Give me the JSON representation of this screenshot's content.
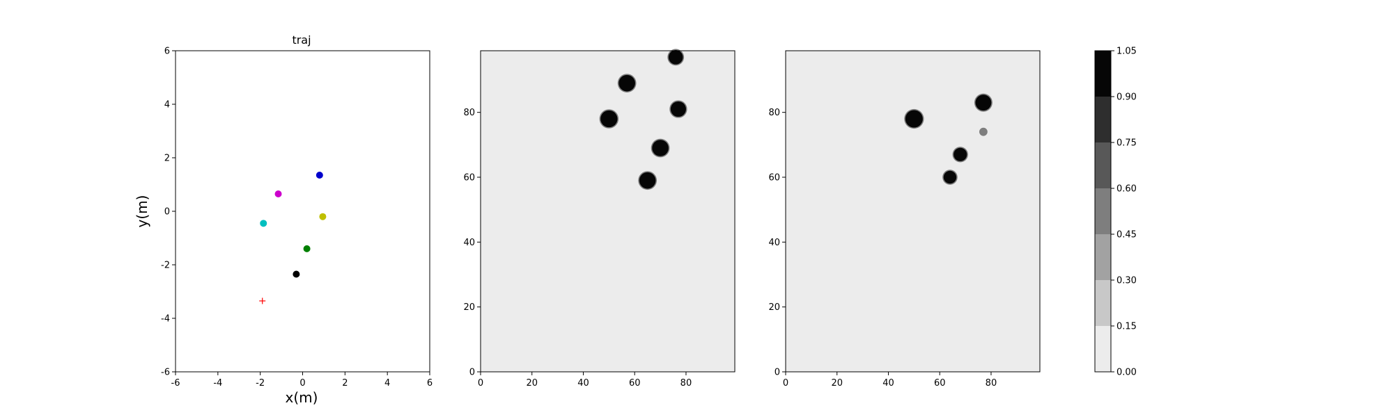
{
  "chart_data": [
    {
      "type": "scatter",
      "title": "traj",
      "xlabel": "x(m)",
      "ylabel": "y(m)",
      "xlim": [
        -6,
        6
      ],
      "ylim": [
        -6,
        6
      ],
      "xticks": [
        -6,
        -4,
        -2,
        0,
        2,
        4,
        6
      ],
      "yticks": [
        -6,
        -4,
        -2,
        0,
        2,
        4,
        6
      ],
      "grid": false,
      "points": [
        {
          "x": 0.8,
          "y": 1.35,
          "color": "#0000cc",
          "marker": "circle"
        },
        {
          "x": -1.15,
          "y": 0.65,
          "color": "#cc00cc",
          "marker": "circle"
        },
        {
          "x": -1.85,
          "y": -0.45,
          "color": "#00bfbf",
          "marker": "circle"
        },
        {
          "x": 0.95,
          "y": -0.2,
          "color": "#bfbf00",
          "marker": "circle"
        },
        {
          "x": 0.2,
          "y": -1.4,
          "color": "#007f00",
          "marker": "circle"
        },
        {
          "x": -0.3,
          "y": -2.35,
          "color": "#000000",
          "marker": "circle"
        },
        {
          "x": -1.9,
          "y": -3.35,
          "color": "#ff0000",
          "marker": "plus"
        }
      ]
    },
    {
      "type": "heatmap",
      "xlim": [
        0,
        99
      ],
      "ylim": [
        0,
        99
      ],
      "xticks": [
        0,
        20,
        40,
        60,
        80
      ],
      "yticks": [
        0,
        20,
        40,
        60,
        80
      ],
      "background_value": 0.05,
      "blobs": [
        {
          "x": 76,
          "y": 97,
          "r": 2.8,
          "value": 1.0
        },
        {
          "x": 57,
          "y": 89,
          "r": 3.2,
          "value": 1.0
        },
        {
          "x": 50,
          "y": 78,
          "r": 3.3,
          "value": 1.0
        },
        {
          "x": 77,
          "y": 81,
          "r": 3.0,
          "value": 1.0
        },
        {
          "x": 70,
          "y": 69,
          "r": 3.2,
          "value": 1.0
        },
        {
          "x": 65,
          "y": 59,
          "r": 3.2,
          "value": 1.0
        }
      ]
    },
    {
      "type": "heatmap",
      "xlim": [
        0,
        99
      ],
      "ylim": [
        0,
        99
      ],
      "xticks": [
        0,
        20,
        40,
        60,
        80
      ],
      "yticks": [
        0,
        20,
        40,
        60,
        80
      ],
      "background_value": 0.05,
      "blobs": [
        {
          "x": 50,
          "y": 78,
          "r": 3.4,
          "value": 1.0
        },
        {
          "x": 77,
          "y": 83,
          "r": 3.1,
          "value": 1.0
        },
        {
          "x": 77,
          "y": 74,
          "r": 1.6,
          "value": 0.45
        },
        {
          "x": 68,
          "y": 67,
          "r": 2.6,
          "value": 1.0
        },
        {
          "x": 64,
          "y": 60,
          "r": 2.5,
          "value": 1.0
        }
      ]
    }
  ],
  "colorbar": {
    "levels": [
      0.0,
      0.15,
      0.3,
      0.45,
      0.6,
      0.75,
      0.9,
      1.05
    ],
    "tick_labels": [
      "0.00",
      "0.15",
      "0.30",
      "0.45",
      "0.60",
      "0.75",
      "0.90",
      "1.05"
    ],
    "colors": [
      "#ececec",
      "#c8c8c8",
      "#a2a2a2",
      "#7e7e7e",
      "#585858",
      "#2e2e2e",
      "#060606"
    ]
  }
}
